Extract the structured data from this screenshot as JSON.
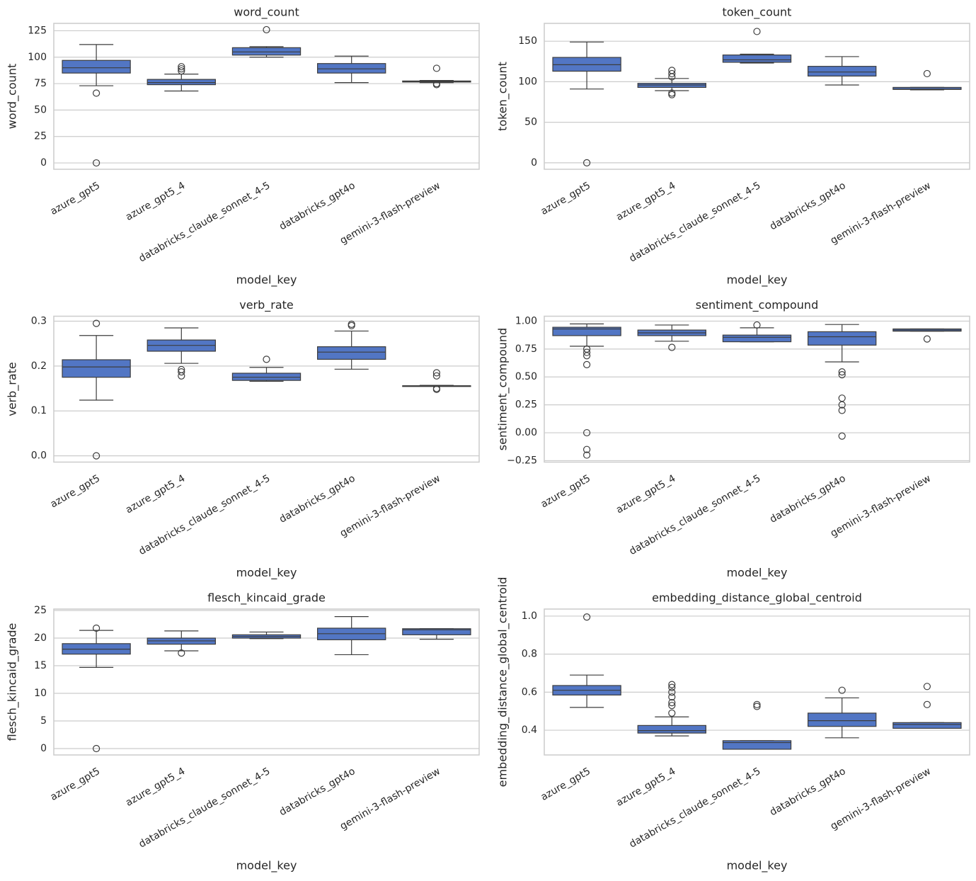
{
  "chart_data": [
    {
      "type": "box",
      "title": "word_count",
      "x_label": "model_key",
      "y_label": "word_count",
      "color": "#5276c4",
      "grid": true,
      "categories": [
        "azure_gpt5",
        "azure_gpt5_4",
        "databricks_claude_sonnet_4-5",
        "databricks_gpt4o",
        "gemini-3-flash-preview"
      ],
      "ylim": [
        -6,
        132
      ],
      "yticks": [
        0,
        25,
        50,
        75,
        100,
        125
      ],
      "boxes": [
        {
          "whisker_low": 73,
          "q1": 85,
          "median": 90,
          "q3": 97,
          "whisker_high": 112,
          "outliers": [
            66,
            0
          ]
        },
        {
          "whisker_low": 68,
          "q1": 74,
          "median": 76,
          "q3": 79,
          "whisker_high": 84,
          "outliers": [
            87,
            89,
            91
          ]
        },
        {
          "whisker_low": 100,
          "q1": 102,
          "median": 105,
          "q3": 109,
          "whisker_high": 110,
          "outliers": [
            126
          ]
        },
        {
          "whisker_low": 76,
          "q1": 85,
          "median": 89,
          "q3": 94,
          "whisker_high": 101,
          "outliers": []
        },
        {
          "whisker_low": 76,
          "q1": 76.5,
          "median": 77,
          "q3": 77.5,
          "whisker_high": 78,
          "outliers": [
            74,
            75,
            89.5
          ]
        }
      ]
    },
    {
      "type": "box",
      "title": "token_count",
      "x_label": "model_key",
      "y_label": "token_count",
      "color": "#5276c4",
      "grid": true,
      "categories": [
        "azure_gpt5",
        "azure_gpt5_4",
        "databricks_claude_sonnet_4-5",
        "databricks_gpt4o",
        "gemini-3-flash-preview"
      ],
      "ylim": [
        -8,
        172
      ],
      "yticks": [
        0,
        50,
        100,
        150
      ],
      "boxes": [
        {
          "whisker_low": 91,
          "q1": 113,
          "median": 121,
          "q3": 130,
          "whisker_high": 149,
          "outliers": [
            0
          ]
        },
        {
          "whisker_low": 89,
          "q1": 93,
          "median": 96,
          "q3": 98,
          "whisker_high": 104,
          "outliers": [
            84,
            86,
            106,
            110,
            114
          ]
        },
        {
          "whisker_low": 123,
          "q1": 124,
          "median": 127,
          "q3": 133,
          "whisker_high": 134,
          "outliers": [
            162
          ]
        },
        {
          "whisker_low": 96,
          "q1": 107,
          "median": 112,
          "q3": 119,
          "whisker_high": 131,
          "outliers": []
        },
        {
          "whisker_low": 90,
          "q1": 90.5,
          "median": 91,
          "q3": 93,
          "whisker_high": 93,
          "outliers": [
            110
          ]
        }
      ]
    },
    {
      "type": "box",
      "title": "verb_rate",
      "x_label": "model_key",
      "y_label": "verb_rate",
      "color": "#5276c4",
      "grid": true,
      "categories": [
        "azure_gpt5",
        "azure_gpt5_4",
        "databricks_claude_sonnet_4-5",
        "databricks_gpt4o",
        "gemini-3-flash-preview"
      ],
      "ylim": [
        -0.014,
        0.311
      ],
      "yticks": [
        {
          "value": 0,
          "label": "0.0"
        },
        0.1,
        0.2,
        0.3
      ],
      "boxes": [
        {
          "whisker_low": 0.124,
          "q1": 0.175,
          "median": 0.198,
          "q3": 0.214,
          "whisker_high": 0.268,
          "outliers": [
            0.295,
            0
          ]
        },
        {
          "whisker_low": 0.206,
          "q1": 0.233,
          "median": 0.246,
          "q3": 0.258,
          "whisker_high": 0.285,
          "outliers": [
            0.178,
            0.187,
            0.192
          ]
        },
        {
          "whisker_low": 0.166,
          "q1": 0.168,
          "median": 0.175,
          "q3": 0.184,
          "whisker_high": 0.197,
          "outliers": [
            0.215
          ]
        },
        {
          "whisker_low": 0.193,
          "q1": 0.215,
          "median": 0.231,
          "q3": 0.243,
          "whisker_high": 0.278,
          "outliers": [
            0.29,
            0.293
          ]
        },
        {
          "whisker_low": 0.155,
          "q1": 0.155,
          "median": 0.156,
          "q3": 0.156,
          "whisker_high": 0.157,
          "outliers": [
            0.148,
            0.15,
            0.178,
            0.185
          ]
        }
      ]
    },
    {
      "type": "box",
      "title": "sentiment_compound",
      "x_label": "model_key",
      "y_label": "sentiment_compound",
      "color": "#5276c4",
      "grid": true,
      "categories": [
        "azure_gpt5",
        "azure_gpt5_4",
        "databricks_claude_sonnet_4-5",
        "databricks_gpt4o",
        "gemini-3-flash-preview"
      ],
      "ylim": [
        -0.263,
        1.044
      ],
      "yticks": [
        {
          "value": -0.25,
          "label": "−0.25"
        },
        {
          "value": 0,
          "label": "0.00"
        },
        0.25,
        {
          "value": 0.5,
          "label": "0.50"
        },
        0.75,
        {
          "value": 1,
          "label": "1.00"
        }
      ],
      "boxes": [
        {
          "whisker_low": 0.775,
          "q1": 0.87,
          "median": 0.93,
          "q3": 0.945,
          "whisker_high": 0.975,
          "outliers": [
            0.75,
            0.72,
            0.69,
            0.61,
            0,
            -0.15,
            -0.2
          ]
        },
        {
          "whisker_low": 0.82,
          "q1": 0.87,
          "median": 0.895,
          "q3": 0.92,
          "whisker_high": 0.965,
          "outliers": [
            0.765
          ]
        },
        {
          "whisker_low": 0.815,
          "q1": 0.815,
          "median": 0.855,
          "q3": 0.875,
          "whisker_high": 0.94,
          "outliers": [
            0.965
          ]
        },
        {
          "whisker_low": 0.635,
          "q1": 0.785,
          "median": 0.86,
          "q3": 0.905,
          "whisker_high": 0.97,
          "outliers": [
            0.545,
            0.52,
            0.31,
            0.25,
            0.2,
            -0.03
          ]
        },
        {
          "whisker_low": 0.91,
          "q1": 0.91,
          "median": 0.92,
          "q3": 0.93,
          "whisker_high": 0.93,
          "outliers": [
            0.84
          ]
        }
      ]
    },
    {
      "type": "box",
      "title": "flesch_kincaid_grade",
      "x_label": "model_key",
      "y_label": "flesch_kincaid_grade",
      "color": "#5276c4",
      "grid": true,
      "categories": [
        "azure_gpt5",
        "azure_gpt5_4",
        "databricks_claude_sonnet_4-5",
        "databricks_gpt4o",
        "gemini-3-flash-preview"
      ],
      "ylim": [
        -1.15,
        25.26
      ],
      "yticks": [
        0,
        5,
        10,
        15,
        20,
        25
      ],
      "boxes": [
        {
          "whisker_low": 14.7,
          "q1": 17.1,
          "median": 18,
          "q3": 19,
          "whisker_high": 21.4,
          "outliers": [
            21.8,
            0
          ]
        },
        {
          "whisker_low": 17.7,
          "q1": 18.9,
          "median": 19.5,
          "q3": 20,
          "whisker_high": 21.3,
          "outliers": [
            17.3
          ]
        },
        {
          "whisker_low": 19.9,
          "q1": 20,
          "median": 20.3,
          "q3": 20.6,
          "whisker_high": 21.1,
          "outliers": []
        },
        {
          "whisker_low": 17,
          "q1": 19.7,
          "median": 20.8,
          "q3": 21.8,
          "whisker_high": 23.9,
          "outliers": []
        },
        {
          "whisker_low": 19.8,
          "q1": 20.6,
          "median": 21.5,
          "q3": 21.7,
          "whisker_high": 21.7,
          "outliers": []
        }
      ]
    },
    {
      "type": "box",
      "title": "embedding_distance_global_centroid",
      "x_label": "model_key",
      "y_label": "embedding_distance_global_centroid",
      "color": "#5276c4",
      "grid": true,
      "categories": [
        "azure_gpt5",
        "azure_gpt5_4",
        "databricks_claude_sonnet_4-5",
        "databricks_gpt4o",
        "gemini-3-flash-preview"
      ],
      "ylim": [
        0.27,
        1.037
      ],
      "yticks": [
        0.4,
        0.6,
        0.8,
        {
          "value": 1,
          "label": "1.0"
        }
      ],
      "boxes": [
        {
          "whisker_low": 0.52,
          "q1": 0.585,
          "median": 0.61,
          "q3": 0.635,
          "whisker_high": 0.69,
          "outliers": [
            0.995
          ]
        },
        {
          "whisker_low": 0.37,
          "q1": 0.385,
          "median": 0.398,
          "q3": 0.425,
          "whisker_high": 0.47,
          "outliers": [
            0.49,
            0.53,
            0.545,
            0.575,
            0.6,
            0.625,
            0.64
          ]
        },
        {
          "whisker_low": 0.3,
          "q1": 0.3,
          "median": 0.335,
          "q3": 0.345,
          "whisker_high": 0.345,
          "outliers": [
            0.525,
            0.535
          ]
        },
        {
          "whisker_low": 0.36,
          "q1": 0.42,
          "median": 0.45,
          "q3": 0.49,
          "whisker_high": 0.57,
          "outliers": [
            0.61
          ]
        },
        {
          "whisker_low": 0.41,
          "q1": 0.41,
          "median": 0.43,
          "q3": 0.44,
          "whisker_high": 0.44,
          "outliers": [
            0.535,
            0.63
          ]
        }
      ]
    }
  ]
}
